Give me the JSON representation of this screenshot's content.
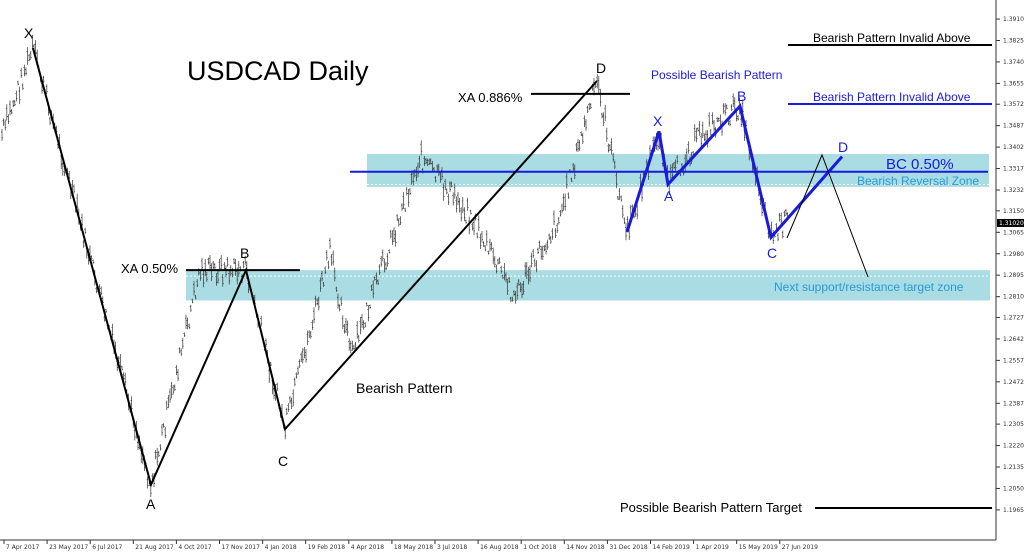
{
  "chart_data": {
    "type": "candlestick",
    "title": "USDCAD Daily",
    "x_tick_labels": [
      "7 Apr 2017",
      "23 May 2017",
      "6 Jul 2017",
      "21 Aug 2017",
      "4 Oct 2017",
      "17 Nov 2017",
      "4 Jan 2018",
      "19 Feb 2018",
      "4 Apr 2018",
      "18 May 2018",
      "3 Jul 2018",
      "16 Aug 2018",
      "1 Oct 2018",
      "14 Nov 2018",
      "31 Dec 2018",
      "14 Feb 2019",
      "1 Apr 2019",
      "15 May 2019",
      "27 Jun 2019"
    ],
    "y_tick_labels": [
      "1.39100",
      "1.38250",
      "1.37400",
      "1.36550",
      "1.35725",
      "1.34875",
      "1.34025",
      "1.33175",
      "1.32325",
      "1.31500",
      "1.30650",
      "1.29800",
      "1.28950",
      "1.28100",
      "1.27275",
      "1.26425",
      "1.25575",
      "1.24725",
      "1.23875",
      "1.23050",
      "1.22200",
      "1.21350",
      "1.20500",
      "1.19650"
    ],
    "ylim": [
      1.1925,
      1.393
    ],
    "current_price_label": "1.31020",
    "current_price": 1.3102,
    "colors": {
      "price_bars": "#333333",
      "black_pattern": "#000000",
      "blue_pattern": "#1a1adc",
      "zone_fill": "#a9dce3",
      "zone_text": "#2a9ad6",
      "bc_line": "#1a1adc"
    },
    "black_pattern": {
      "label": "Bearish Pattern",
      "points": [
        {
          "label": "X",
          "date": "Apr 2017",
          "price": 1.3795
        },
        {
          "label": "A",
          "date": "Sep 2017",
          "price": 1.2065
        },
        {
          "label": "B",
          "date": "Dec 2017",
          "price": 1.2915
        },
        {
          "label": "C",
          "date": "Feb 2018",
          "price": 1.2285
        },
        {
          "label": "D",
          "date": "Dec 2018",
          "price": 1.3665
        }
      ],
      "xa_050_label": "XA 0.50%",
      "xa_0886_label": "XA 0.886%"
    },
    "blue_pattern": {
      "label": "Possible Bearish Pattern",
      "points": [
        {
          "label": "X",
          "date": "Feb 2019",
          "price": 1.3465
        },
        {
          "label": "A",
          "date": "Feb 2019",
          "price": 1.3255
        },
        {
          "label": "B",
          "date": "May 2019",
          "price": 1.3565
        },
        {
          "label": "C",
          "date": "Jun 2019",
          "price": 1.3045
        },
        {
          "label": "D",
          "date": "Jul 2019",
          "price": 1.3365
        }
      ],
      "bc_label": "BC 0.50%",
      "bc_price": 1.3305
    },
    "zones": {
      "reversal": {
        "label": "Bearish Reversal Zone",
        "from": 1.3245,
        "to": 1.3375
      },
      "support": {
        "label": "Next support/resistance target zone",
        "from": 1.2795,
        "to": 1.2915
      }
    },
    "annotations": {
      "black_invalid": "Bearish Pattern Invalid Above",
      "blue_invalid": "Bearish Pattern Invalid Above",
      "target": "Possible Bearish Pattern Target"
    }
  }
}
